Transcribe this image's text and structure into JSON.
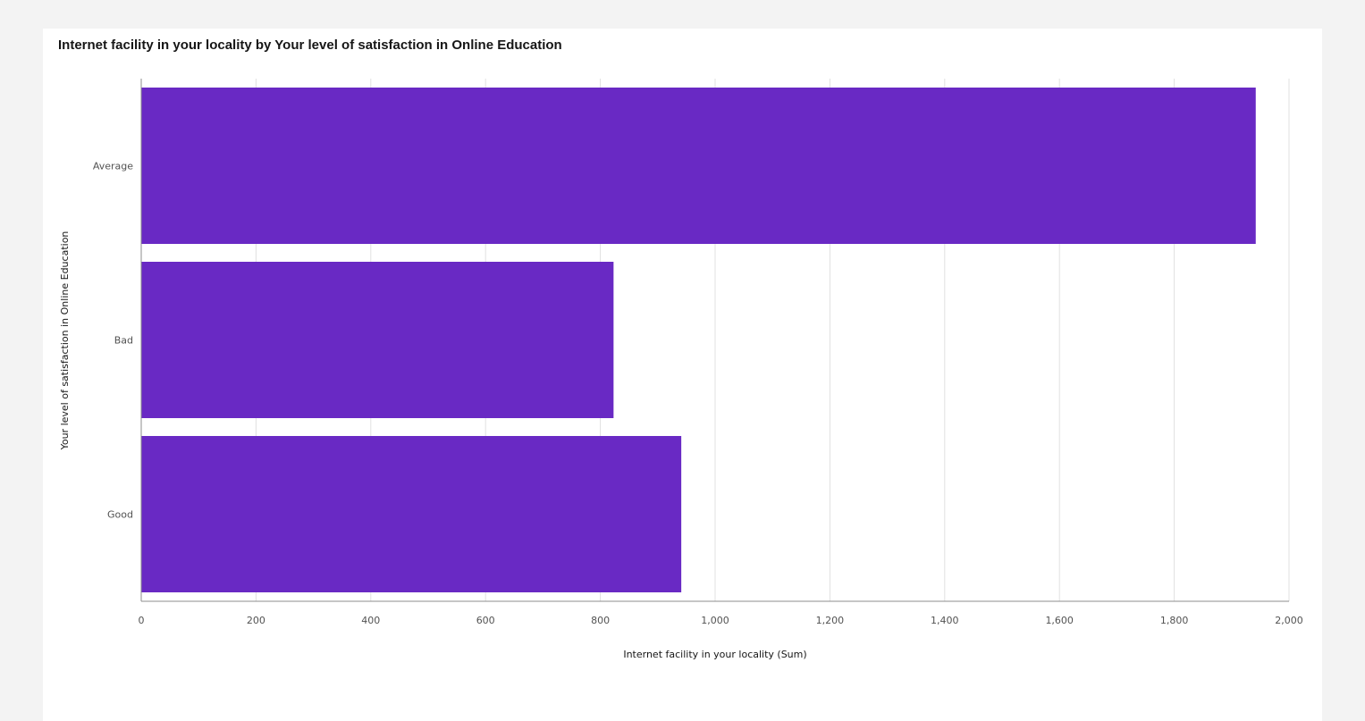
{
  "chart_data": {
    "type": "bar",
    "orientation": "horizontal",
    "title": "Internet facility in your locality by Your level of satisfaction in Online Education",
    "xlabel": "Internet facility in your locality (Sum)",
    "ylabel": "Your level of satisfaction in Online Education",
    "categories": [
      "Average",
      "Bad",
      "Good"
    ],
    "values": [
      1942,
      823,
      941
    ],
    "xlim": [
      0,
      2000
    ],
    "xticks": [
      0,
      200,
      400,
      600,
      800,
      1000,
      1200,
      1400,
      1600,
      1800,
      2000
    ],
    "xtick_labels": [
      "0",
      "200",
      "400",
      "600",
      "800",
      "1,000",
      "1,200",
      "1,400",
      "1,600",
      "1,800",
      "2,000"
    ],
    "grid": true,
    "bar_color": "#6929c4",
    "grid_color": "#e0e0e0",
    "axis_color": "#8d8d8d"
  }
}
